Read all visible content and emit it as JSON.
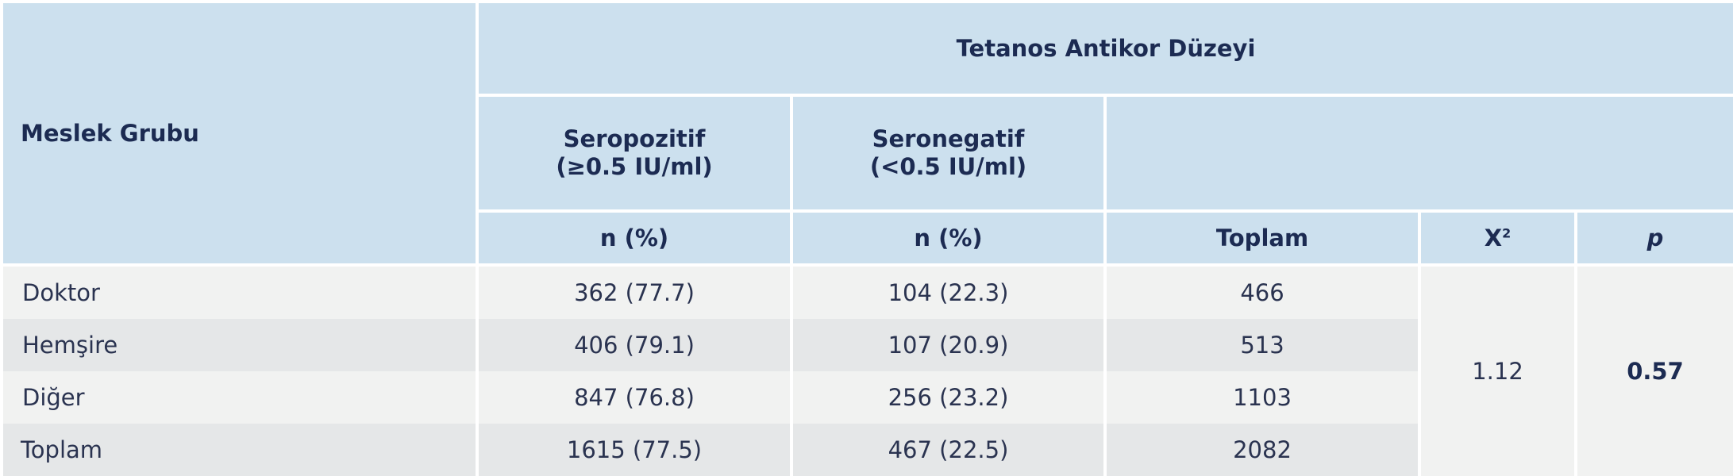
{
  "table": {
    "header": {
      "group_label": "Meslek Grubu",
      "main_title": "Tetanos Antikor Düzeyi",
      "seropositive_line1": "Seropozitif",
      "seropositive_line2": "(≥0.5 IU/ml)",
      "seronegative_line1": "Seronegatif",
      "seronegative_line2": "(<0.5 IU/ml)",
      "n_pct_1": "n (%)",
      "n_pct_2": "n (%)",
      "total": "Toplam",
      "chi_base": "X",
      "chi_sup": "2",
      "p": "p"
    },
    "rows": [
      {
        "group": "Doktor",
        "pos": "362 (77.7)",
        "neg": "104 (22.3)",
        "total": "466"
      },
      {
        "group": "Hemşire",
        "pos": "406 (79.1)",
        "neg": "107 (20.9)",
        "total": "513"
      },
      {
        "group": "Diğer",
        "pos": "847 (76.8)",
        "neg": "256 (23.2)",
        "total": "1103"
      },
      {
        "group": "Toplam",
        "pos": "1615 (77.5)",
        "neg": "467 (22.5)",
        "total": "2082"
      }
    ],
    "chi_square": "1.12",
    "p_value": "0.57"
  }
}
